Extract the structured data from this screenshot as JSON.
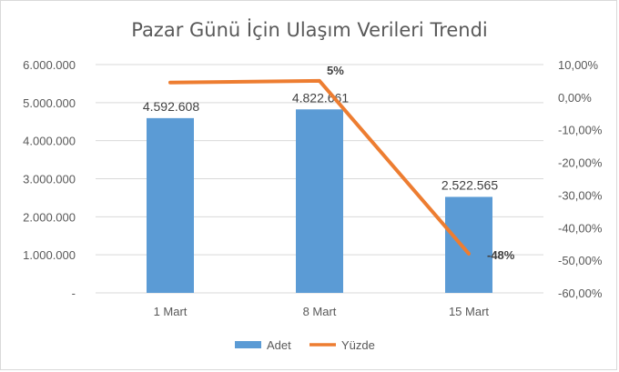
{
  "chart_data": {
    "type": "bar",
    "title": "Pazar Günü İçin Ulaşım Verileri Trendi",
    "categories": [
      "1 Mart",
      "8 Mart",
      "15 Mart"
    ],
    "series": [
      {
        "name": "Adet",
        "type": "bar",
        "axis": "left",
        "values": [
          4592608,
          4822661,
          2522565
        ],
        "labels": [
          "4.592.608",
          "4.822.661",
          "2.522.565"
        ],
        "color": "#5b9bd5"
      },
      {
        "name": "Yüzde",
        "type": "line",
        "axis": "right",
        "values": [
          4.5,
          5.0,
          -48.0
        ],
        "labels": [
          "",
          "5%",
          "-48%"
        ],
        "color": "#ed7d31"
      }
    ],
    "y_left": {
      "ylim": [
        0,
        6000000
      ],
      "ticks": [
        0,
        1000000,
        2000000,
        3000000,
        4000000,
        5000000,
        6000000
      ],
      "tick_labels": [
        "-",
        "1.000.000",
        "2.000.000",
        "3.000.000",
        "4.000.000",
        "5.000.000",
        "6.000.000"
      ]
    },
    "y_right": {
      "ylim": [
        -60,
        10
      ],
      "ticks": [
        -60,
        -50,
        -40,
        -30,
        -20,
        -10,
        0,
        10
      ],
      "tick_labels": [
        "-60,00%",
        "-50,00%",
        "-40,00%",
        "-30,00%",
        "-20,00%",
        "-10,00%",
        "0,00%",
        "10,00%"
      ]
    },
    "grid": true,
    "legend_position": "bottom"
  }
}
